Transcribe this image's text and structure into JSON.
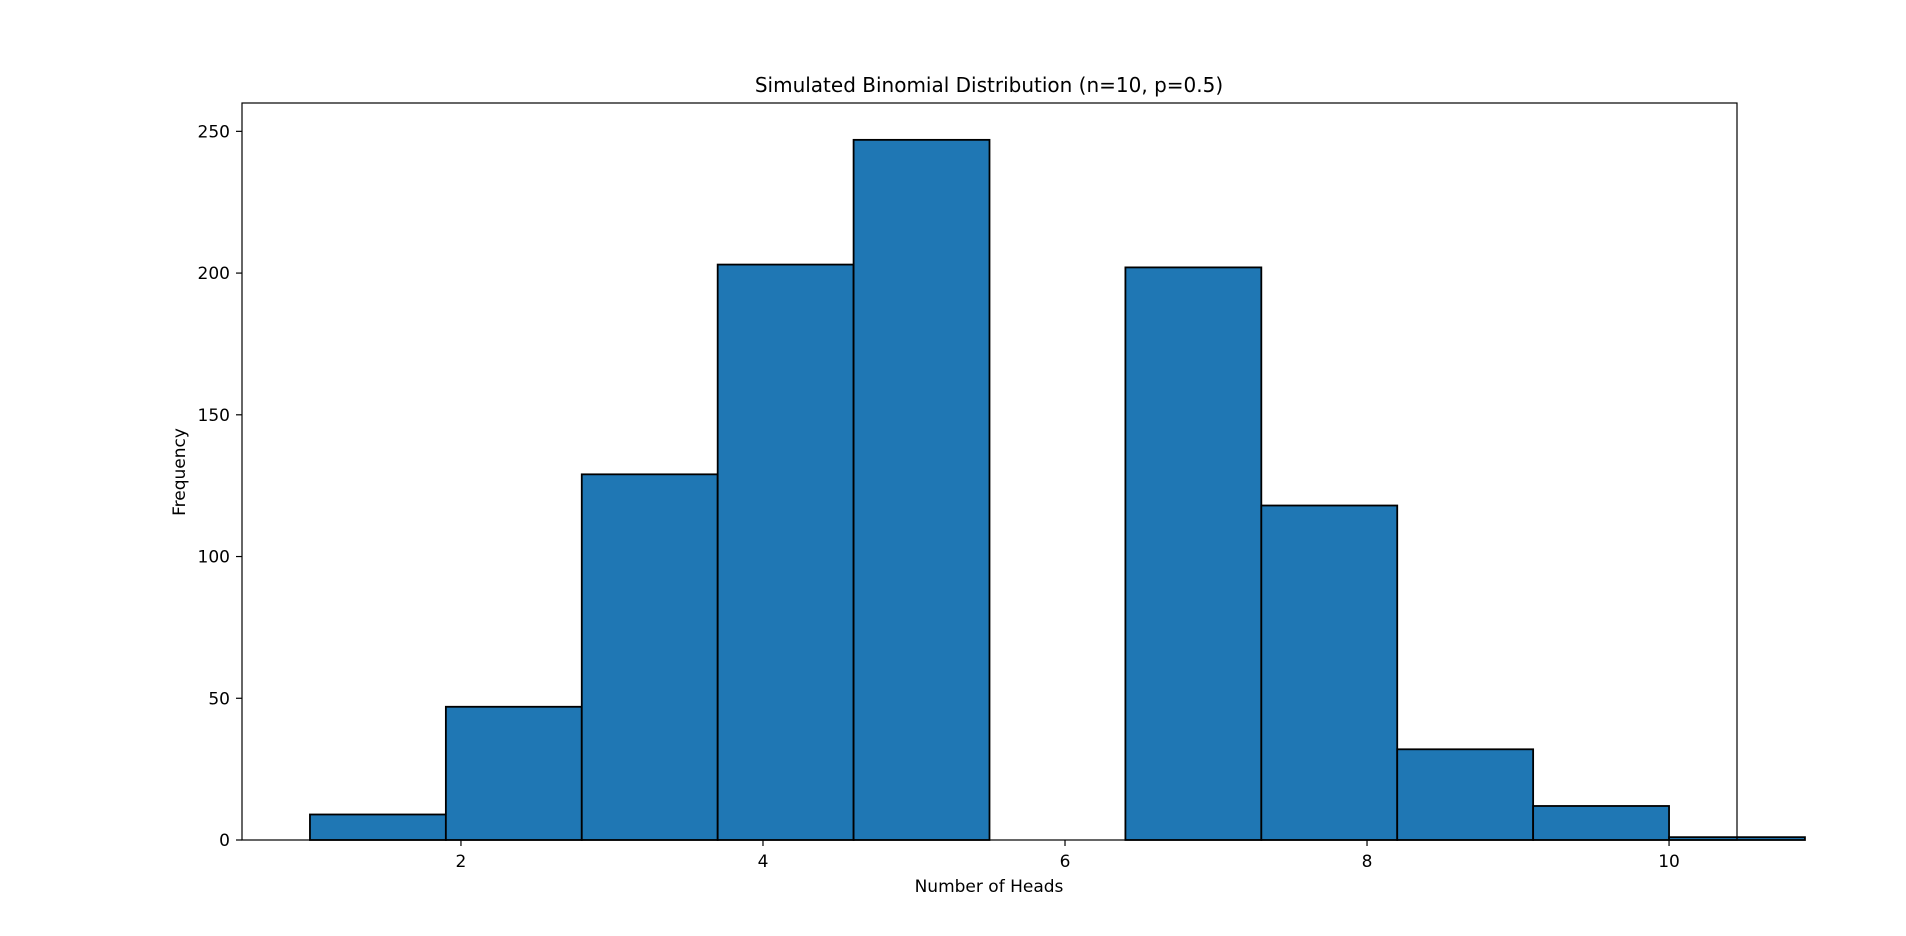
{
  "chart_data": {
    "type": "bar",
    "title": "Simulated Binomial Distribution (n=10, p=0.5)",
    "xlabel": "Number of Heads",
    "ylabel": "Frequency",
    "bins": [
      {
        "x0": 1.0,
        "x1": 1.9,
        "count": 9
      },
      {
        "x0": 1.9,
        "x1": 2.8,
        "count": 47
      },
      {
        "x0": 2.8,
        "x1": 3.7,
        "count": 129
      },
      {
        "x0": 3.7,
        "x1": 4.6,
        "count": 203
      },
      {
        "x0": 4.6,
        "x1": 5.5,
        "count": 247
      },
      {
        "x0": 5.5,
        "x1": 6.4,
        "count": 0
      },
      {
        "x0": 6.4,
        "x1": 7.3,
        "count": 202
      },
      {
        "x0": 7.3,
        "x1": 8.2,
        "count": 118
      },
      {
        "x0": 8.2,
        "x1": 9.1,
        "count": 32
      },
      {
        "x0": 9.1,
        "x1": 10.0,
        "count": 12
      },
      {
        "x0": 10.0,
        "x1": 10.9,
        "count": 1
      }
    ],
    "xlim": [
      0.55,
      10.45
    ],
    "ylim": [
      0,
      260
    ],
    "xticks": [
      2,
      4,
      6,
      8,
      10
    ],
    "yticks": [
      0,
      50,
      100,
      150,
      200,
      250
    ],
    "xtick_labels": [
      "2",
      "4",
      "6",
      "8",
      "10"
    ],
    "ytick_labels": [
      "0",
      "50",
      "100",
      "150",
      "200",
      "250"
    ],
    "grid": false,
    "bar_color": "#1f77b4",
    "edge_color": "#000000"
  }
}
